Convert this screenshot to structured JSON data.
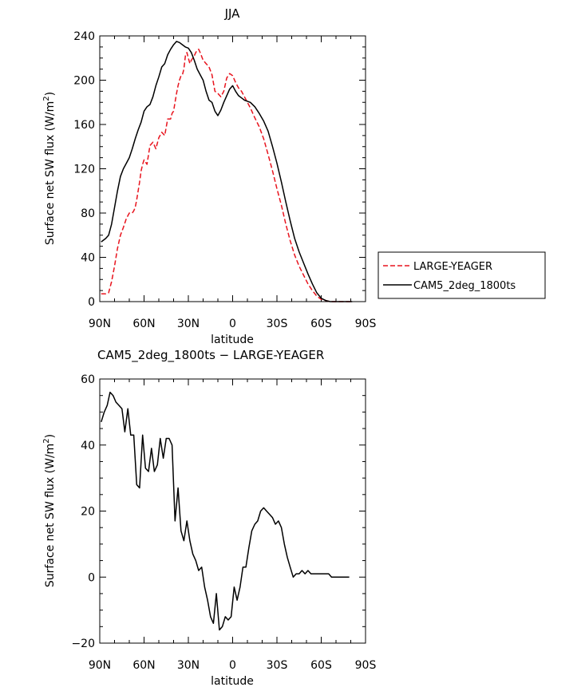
{
  "chart_data": [
    {
      "type": "line",
      "title": "JJA",
      "xlabel": "latitude",
      "ylabel_main": "Surface net SW flux (W/m",
      "ylabel_sup": "2",
      "ylabel_tail": ")",
      "xlim": [
        -90,
        90
      ],
      "ylim": [
        0,
        240
      ],
      "x_ticks": [
        -90,
        -60,
        -30,
        0,
        30,
        60,
        90
      ],
      "x_tick_labels": [
        "90N",
        "60N",
        "30N",
        "0",
        "30S",
        "60S",
        "90S"
      ],
      "y_ticks": [
        0,
        40,
        80,
        120,
        160,
        200,
        240
      ],
      "y_tick_labels": [
        "0",
        "40",
        "80",
        "120",
        "160",
        "200",
        "240"
      ],
      "grid": false,
      "legend_position": "right",
      "series": [
        {
          "name": "LARGE-YEAGER",
          "color": "#e8141e",
          "dash": "dashed",
          "x": [
            -89,
            -87,
            -86,
            -84,
            -82,
            -80,
            -78,
            -76,
            -74,
            -72,
            -70,
            -68,
            -67,
            -66,
            -65,
            -64,
            -63,
            -62,
            -61,
            -60,
            -58,
            -56,
            -54,
            -52,
            -50,
            -48,
            -46,
            -44,
            -42,
            -41,
            -40,
            -39,
            -38,
            -37,
            -36,
            -35,
            -34,
            -33,
            -32,
            -31,
            -30,
            -29,
            -28,
            -27,
            -26,
            -25,
            -24,
            -23,
            -22,
            -20,
            -18,
            -16,
            -14,
            -12,
            -10,
            -8,
            -6,
            -4,
            -2,
            0,
            2,
            4,
            6,
            8,
            10,
            12,
            15,
            18,
            21,
            24,
            27,
            30,
            33,
            36,
            39,
            42,
            45,
            48,
            51,
            54,
            57,
            60,
            63,
            66,
            69,
            72,
            75,
            78,
            81
          ],
          "y": [
            7,
            7,
            7,
            8,
            18,
            32,
            48,
            60,
            67,
            75,
            80,
            80,
            82,
            85,
            92,
            100,
            108,
            118,
            124,
            128,
            124,
            141,
            144,
            138,
            148,
            153,
            150,
            165,
            165,
            170,
            172,
            180,
            188,
            195,
            200,
            204,
            205,
            210,
            222,
            225,
            220,
            215,
            218,
            220,
            222,
            225,
            227,
            228,
            225,
            218,
            215,
            212,
            205,
            190,
            188,
            185,
            190,
            202,
            206,
            204,
            198,
            193,
            190,
            185,
            180,
            175,
            166,
            158,
            147,
            133,
            118,
            102,
            87,
            70,
            55,
            42,
            32,
            24,
            16,
            10,
            5,
            2,
            1,
            0,
            0,
            0,
            0,
            0,
            0
          ]
        },
        {
          "name": "CAM5_2deg_1800ts",
          "color": "#000000",
          "dash": "solid",
          "x": [
            -89,
            -86,
            -84,
            -82,
            -80,
            -78,
            -76,
            -74,
            -72,
            -70,
            -68,
            -66,
            -64,
            -62,
            -60,
            -58,
            -56,
            -54,
            -52,
            -50,
            -48,
            -46,
            -44,
            -42,
            -40,
            -38,
            -36,
            -34,
            -32,
            -30,
            -28,
            -26,
            -24,
            -22,
            -20,
            -18,
            -16,
            -14,
            -12,
            -10,
            -8,
            -6,
            -4,
            -2,
            0,
            2,
            4,
            6,
            8,
            10,
            12,
            15,
            18,
            21,
            24,
            27,
            30,
            33,
            36,
            39,
            42,
            45,
            48,
            51,
            54,
            57,
            60,
            63,
            66,
            69,
            72,
            75,
            78,
            81
          ],
          "y": [
            54,
            57,
            60,
            70,
            85,
            100,
            113,
            120,
            125,
            130,
            138,
            147,
            155,
            162,
            172,
            176,
            178,
            185,
            195,
            203,
            212,
            215,
            223,
            228,
            232,
            235,
            234,
            232,
            230,
            229,
            225,
            218,
            210,
            205,
            200,
            190,
            182,
            180,
            172,
            168,
            173,
            180,
            186,
            192,
            195,
            190,
            186,
            184,
            182,
            181,
            180,
            176,
            170,
            163,
            154,
            140,
            125,
            108,
            90,
            73,
            57,
            45,
            35,
            25,
            16,
            8,
            3,
            1,
            0,
            0,
            0,
            0,
            0,
            0
          ]
        }
      ]
    },
    {
      "type": "line",
      "title": "CAM5_2deg_1800ts − LARGE-YEAGER",
      "xlabel": "latitude",
      "ylabel_main": "Surface net SW flux (W/m",
      "ylabel_sup": "2",
      "ylabel_tail": ")",
      "xlim": [
        -90,
        90
      ],
      "ylim": [
        -20,
        60
      ],
      "x_ticks": [
        -90,
        -60,
        -30,
        0,
        30,
        60,
        90
      ],
      "x_tick_labels": [
        "90N",
        "60N",
        "30N",
        "0",
        "30S",
        "60S",
        "90S"
      ],
      "y_ticks": [
        -20,
        0,
        20,
        40,
        60
      ],
      "y_tick_labels": [
        "−20",
        "0",
        "20",
        "40",
        "60"
      ],
      "grid": false,
      "series": [
        {
          "color": "#000000",
          "dash": "solid",
          "x": [
            -89,
            -87,
            -85,
            -83,
            -81,
            -79,
            -77,
            -75,
            -73,
            -71,
            -69,
            -67,
            -65,
            -63,
            -61,
            -59,
            -57,
            -55,
            -53,
            -51,
            -49,
            -47,
            -45,
            -43,
            -41,
            -39,
            -37,
            -35,
            -33,
            -31,
            -29,
            -27,
            -25,
            -23,
            -21,
            -19,
            -17,
            -15,
            -13,
            -11,
            -9,
            -7,
            -5,
            -3,
            -1,
            1,
            3,
            5,
            7,
            9,
            11,
            13,
            15,
            17,
            19,
            21,
            23,
            25,
            27,
            29,
            31,
            33,
            35,
            37,
            39,
            41,
            43,
            45,
            47,
            49,
            51,
            53,
            55,
            57,
            59,
            61,
            63,
            65,
            67,
            69,
            71,
            73,
            75,
            77,
            79
          ],
          "y": [
            47,
            50,
            52,
            56,
            55,
            53,
            52,
            51,
            44,
            51,
            43,
            43,
            28,
            27,
            43,
            33,
            32,
            39,
            32,
            34,
            42,
            36,
            42,
            42,
            40,
            17,
            27,
            14,
            11,
            17,
            11,
            7,
            5,
            2,
            3,
            -3,
            -7,
            -12,
            -14,
            -5,
            -16,
            -15,
            -12,
            -13,
            -12,
            -3,
            -7,
            -3,
            3,
            3,
            9,
            14,
            16,
            17,
            20,
            21,
            20,
            19,
            18,
            16,
            17,
            15,
            10,
            6,
            3,
            0,
            1,
            1,
            2,
            1,
            2,
            1,
            1,
            1,
            1,
            1,
            1,
            1,
            0,
            0,
            0,
            0,
            0,
            0,
            0
          ]
        }
      ]
    }
  ]
}
